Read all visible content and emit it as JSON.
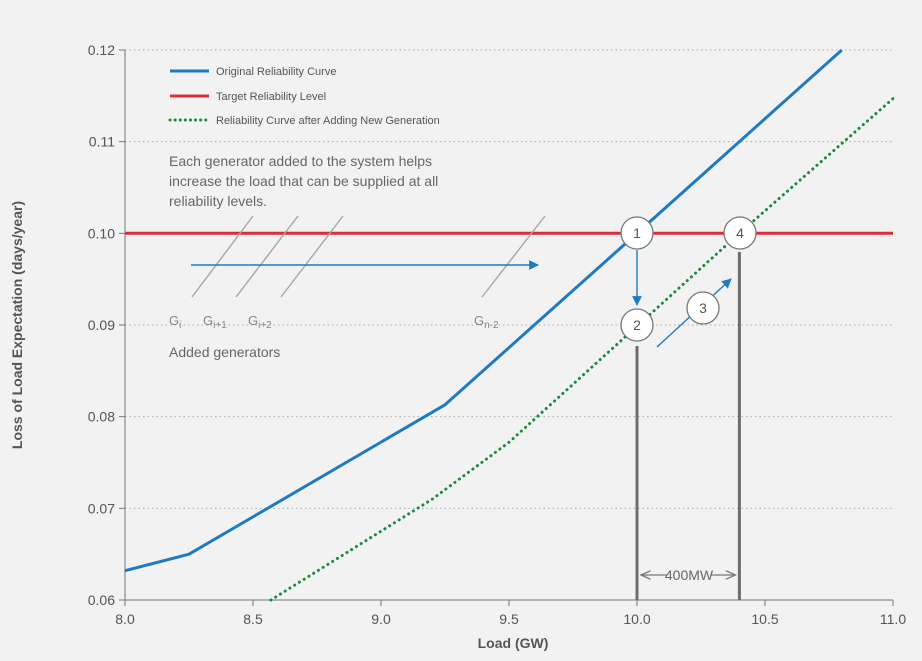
{
  "chart_data": {
    "type": "line",
    "xlabel": "Load (GW)",
    "ylabel": "Loss of Load Expectation (days/year)",
    "xlim": [
      8.0,
      11.0
    ],
    "ylim": [
      0.06,
      0.12
    ],
    "x_ticks": [
      "8.0",
      "8.5",
      "9.0",
      "9.5",
      "10.0",
      "10.5",
      "11.0"
    ],
    "y_ticks": [
      "0.06",
      "0.07",
      "0.08",
      "0.09",
      "0.10",
      "0.11",
      "0.12"
    ],
    "grid": "horizontal dotted",
    "legend_position": "top-left",
    "series": [
      {
        "name": "Original Reliability Curve",
        "style": "solid",
        "color": "#1f7bc1",
        "points": [
          [
            8.0,
            0.0632
          ],
          [
            8.25,
            0.065
          ],
          [
            9.25,
            0.0813
          ],
          [
            10.0,
            0.1
          ],
          [
            10.8,
            0.12
          ]
        ]
      },
      {
        "name": "Target Reliability Level",
        "style": "solid",
        "color": "#e02a3a",
        "points": [
          [
            8.0,
            0.1
          ],
          [
            11.0,
            0.1
          ]
        ]
      },
      {
        "name": "Reliability Curve after Adding New Generation",
        "style": "dotted",
        "color": "#1a8a3e",
        "points": [
          [
            8.57,
            0.06
          ],
          [
            9.2,
            0.071
          ],
          [
            9.5,
            0.0772
          ],
          [
            10.4,
            0.1
          ],
          [
            11.0,
            0.1147
          ]
        ]
      }
    ],
    "annotations": {
      "description": [
        "Each generator added to the system helps",
        "increase the load that can be supplied at all",
        "reliability levels."
      ],
      "added_generators_label": "Added generators",
      "generator_labels": [
        {
          "base": "G",
          "sub": "i"
        },
        {
          "base": "G",
          "sub": "i+1"
        },
        {
          "base": "G",
          "sub": "i+2"
        },
        {
          "base": "G",
          "sub": "n-2"
        }
      ],
      "callouts": [
        "1",
        "2",
        "3",
        "4"
      ],
      "difference_label": "400MW"
    },
    "colors": {
      "background": "#f2f2f2",
      "grid": "#aaaaaa",
      "vertical_markers": "#6d6d6d",
      "arrows": "#1f7bc1",
      "generator_hatch": "#a6a6a6"
    }
  }
}
